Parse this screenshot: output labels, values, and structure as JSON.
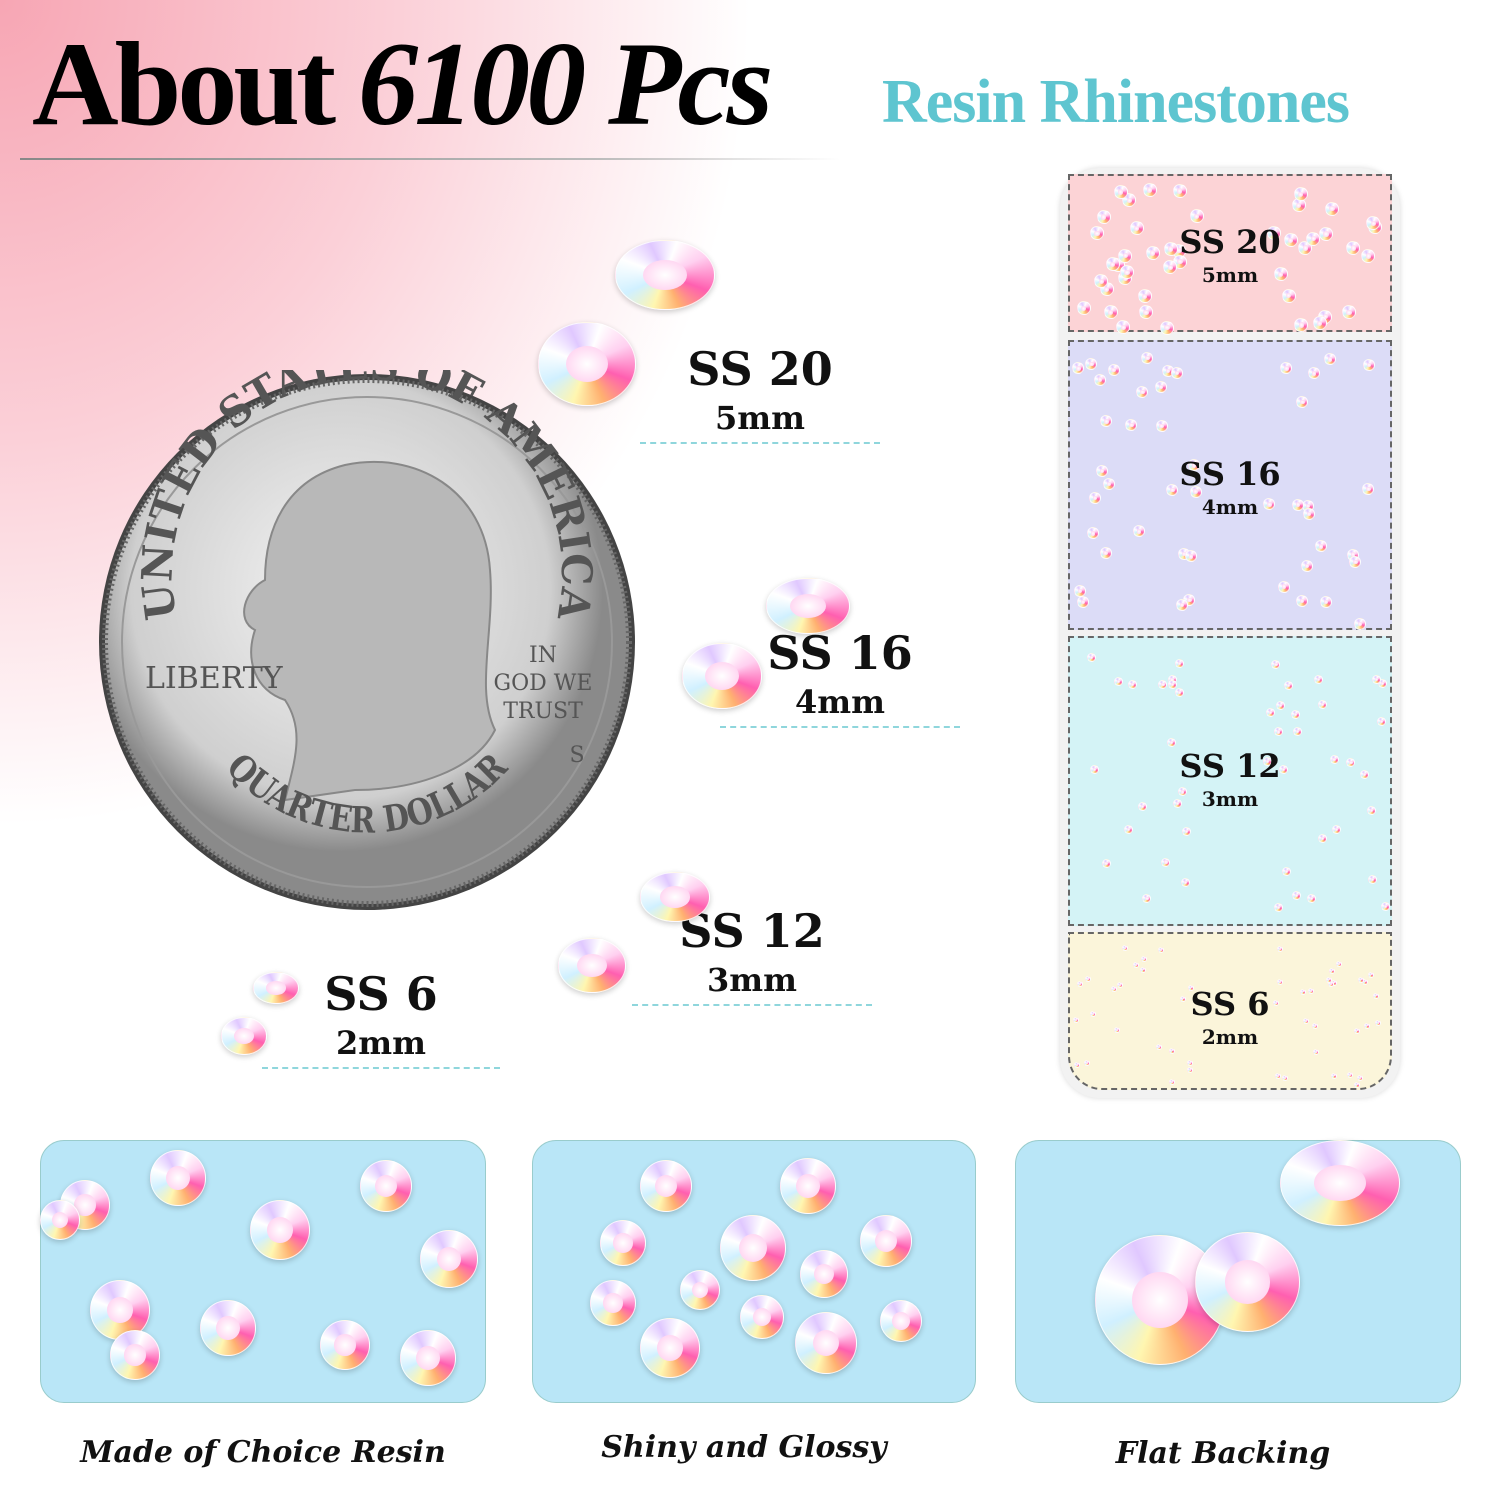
{
  "header": {
    "title_prefix": "About",
    "title_count": "6100 Pcs",
    "subtitle": "Resin Rhinestones"
  },
  "colors": {
    "accent": "#5ec5d0",
    "pink_bg": "#f7a6b4",
    "tray_pink": "#fcd3d6",
    "tray_lavender": "#dcdcf7",
    "tray_cyan": "#d4f3f6",
    "tray_yellow": "#fbf5da",
    "panel_blue": "#b9e6f7"
  },
  "coin": {
    "top_text": "UNITED STATES OF AMERICA",
    "liberty": "LIBERTY",
    "motto": [
      "IN",
      "GOD WE",
      "TRUST"
    ],
    "mint": "S",
    "bottom_text": "QUARTER DOLLAR"
  },
  "sizes": [
    {
      "ss": "SS 20",
      "mm": "5mm"
    },
    {
      "ss": "SS 16",
      "mm": "4mm"
    },
    {
      "ss": "SS 12",
      "mm": "3mm"
    },
    {
      "ss": "SS 6",
      "mm": "2mm"
    }
  ],
  "tray": [
    {
      "ss": "SS 20",
      "mm": "5mm"
    },
    {
      "ss": "SS 16",
      "mm": "4mm"
    },
    {
      "ss": "SS 12",
      "mm": "3mm"
    },
    {
      "ss": "SS 6",
      "mm": "2mm"
    }
  ],
  "features": [
    {
      "caption": "Made of Choice Resin"
    },
    {
      "caption": "Shiny and Glossy"
    },
    {
      "caption": "Flat Backing"
    }
  ]
}
